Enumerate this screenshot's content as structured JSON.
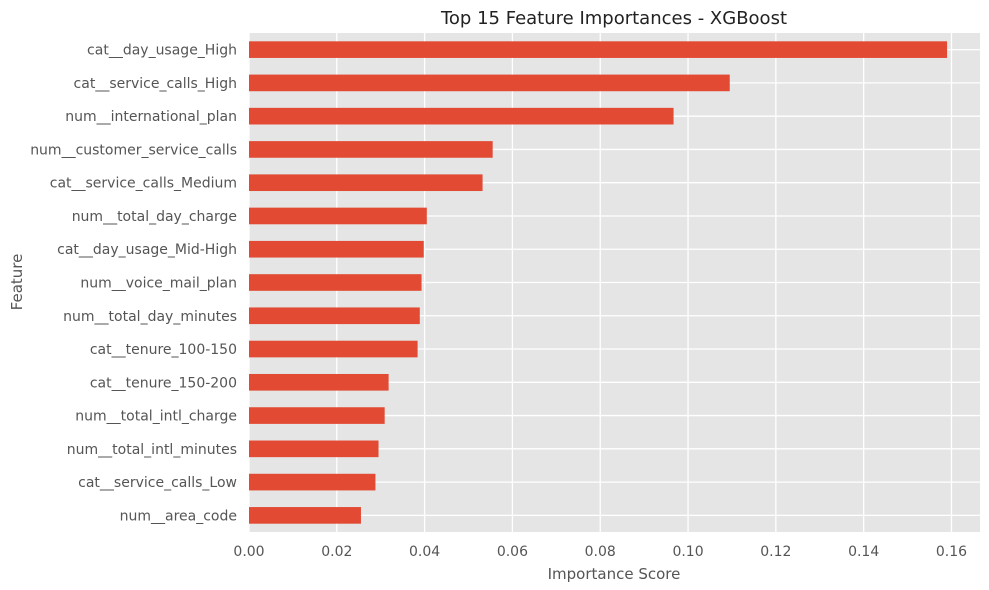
{
  "chart_data": {
    "type": "bar",
    "orientation": "horizontal",
    "title": "Top 15 Feature Importances - XGBoost",
    "xlabel": "Importance Score",
    "ylabel": "Feature",
    "xlim": [
      0,
      0.1665
    ],
    "xticks": [
      0.0,
      0.02,
      0.04,
      0.06,
      0.08,
      0.1,
      0.12,
      0.14,
      0.16
    ],
    "xtick_labels": [
      "0.00",
      "0.02",
      "0.04",
      "0.06",
      "0.08",
      "0.10",
      "0.12",
      "0.14",
      "0.16"
    ],
    "grid": true,
    "legend": "none",
    "categories": [
      "cat__day_usage_High",
      "cat__service_calls_High",
      "num__international_plan",
      "num__customer_service_calls",
      "cat__service_calls_Medium",
      "num__total_day_charge",
      "cat__day_usage_Mid-High",
      "num__voice_mail_plan",
      "num__total_day_minutes",
      "cat__tenure_100-150",
      "cat__tenure_150-200",
      "num__total_intl_charge",
      "num__total_intl_minutes",
      "cat__service_calls_Low",
      "num__area_code"
    ],
    "values": [
      0.159,
      0.1095,
      0.0967,
      0.0555,
      0.0532,
      0.0405,
      0.0398,
      0.0393,
      0.0389,
      0.0384,
      0.0318,
      0.0309,
      0.0295,
      0.0288,
      0.0255
    ]
  },
  "colors": {
    "bar": "#e24a33",
    "plot_background": "#e5e5e5",
    "grid": "#ffffff",
    "text": "#555555",
    "title": "#222222"
  }
}
